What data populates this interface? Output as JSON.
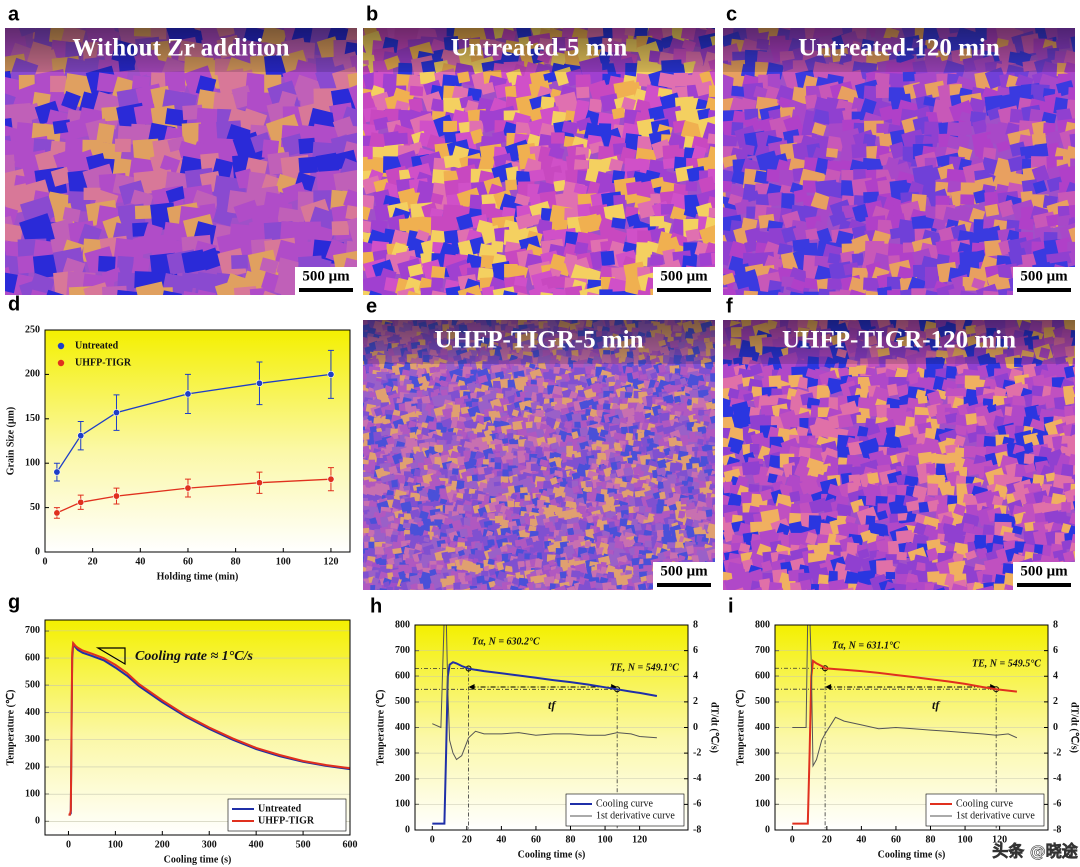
{
  "panels": [
    {
      "letter": "a",
      "title": "Without Zr addition",
      "scale_bar": "500 μm"
    },
    {
      "letter": "b",
      "title": "Untreated-5 min",
      "scale_bar": "500 μm"
    },
    {
      "letter": "c",
      "title": "Untreated-120 min",
      "scale_bar": "500 μm"
    },
    {
      "letter": "e",
      "title": "UHFP-TIGR-5 min",
      "scale_bar": "500 μm"
    },
    {
      "letter": "f",
      "title": "UHFP-TIGR-120 min",
      "scale_bar": "500 μm"
    }
  ],
  "watermark": "头条 @晓途",
  "chart_data": [
    {
      "type": "line",
      "panel_label": "d",
      "xlabel": "Holding time (min)",
      "ylabel": "Grain Size (μm)",
      "x": [
        5,
        15,
        30,
        60,
        90,
        120
      ],
      "series": [
        {
          "name": "Untreated",
          "color": "#1e3ec8",
          "values": [
            90,
            131,
            157,
            178,
            190,
            200
          ],
          "errors": [
            10,
            16,
            20,
            22,
            24,
            27
          ]
        },
        {
          "name": "UHFP-TIGR",
          "color": "#e0301e",
          "values": [
            44,
            56,
            63,
            72,
            78,
            82
          ],
          "errors": [
            6,
            8,
            9,
            10,
            12,
            13
          ]
        }
      ],
      "xlim": [
        0,
        128
      ],
      "xticks": [
        0,
        20,
        40,
        60,
        80,
        100,
        120
      ],
      "ylim": [
        0,
        250
      ],
      "yticks": [
        0,
        50,
        100,
        150,
        200,
        250
      ],
      "grid": false,
      "legend": "upper left",
      "markers": true
    },
    {
      "type": "line",
      "panel_label": "g",
      "xlabel": "Cooling time (s)",
      "ylabel": "Temperature (℃)",
      "annotations": [
        "Cooling rate ≈ 1°C/s"
      ],
      "x": [
        0,
        3,
        5,
        8,
        10,
        15,
        20,
        30,
        50,
        75,
        100,
        125,
        150,
        200,
        250,
        300,
        350,
        400,
        450,
        500,
        550,
        600
      ],
      "series": [
        {
          "name": "Untreated",
          "color": "#1f2fa8",
          "values": [
            25,
            25,
            30,
            600,
            650,
            640,
            630,
            620,
            608,
            592,
            565,
            535,
            498,
            438,
            385,
            340,
            300,
            266,
            240,
            219,
            204,
            192
          ]
        },
        {
          "name": "UHFP-TIGR",
          "color": "#e0301e",
          "values": [
            25,
            25,
            40,
            620,
            655,
            645,
            638,
            628,
            616,
            600,
            575,
            545,
            505,
            445,
            390,
            345,
            305,
            270,
            244,
            222,
            207,
            195
          ]
        }
      ],
      "xlim": [
        -50,
        600
      ],
      "xticks": [
        0,
        100,
        200,
        300,
        400,
        500,
        600
      ],
      "ylim": [
        -50,
        740
      ],
      "yticks": [
        0,
        100,
        200,
        300,
        400,
        500,
        600,
        700
      ],
      "grid": true,
      "legend": "lower right"
    },
    {
      "type": "line",
      "panel_label": "h",
      "xlabel": "Cooling time (s)",
      "ylabel": "Temperature (℃)",
      "y2label": "dT/dt (℃/s)",
      "annotations": [
        "Tα, N = 630.2°C",
        "TE, N = 549.1°C",
        "tf"
      ],
      "x": [
        0,
        5,
        7,
        8,
        9,
        10,
        12,
        14,
        17,
        21,
        25,
        30,
        40,
        50,
        60,
        70,
        80,
        90,
        100,
        107,
        115,
        120,
        130
      ],
      "series": [
        {
          "name": "Cooling curve",
          "color": "#1f2fa8",
          "values": [
            25,
            25,
            25,
            300,
            600,
            645,
            655,
            650,
            640,
            630,
            625,
            620,
            612,
            603,
            594,
            585,
            577,
            568,
            557,
            549,
            540,
            535,
            523
          ]
        },
        {
          "name": "1st derivative curve",
          "color": "#555555",
          "axis": "y2",
          "values": [
            0.3,
            0,
            9,
            9,
            3,
            -1,
            -2,
            -2.5,
            -2.2,
            -0.8,
            -0.3,
            -0.5,
            -0.5,
            -0.4,
            -0.6,
            -0.5,
            -0.5,
            -0.6,
            -0.6,
            -0.4,
            -0.5,
            -0.7,
            -0.8
          ]
        }
      ],
      "reference_lines": [
        {
          "x": 21,
          "y": 630.2
        },
        {
          "x": 107,
          "y": 549.1
        }
      ],
      "xlim": [
        -10,
        148
      ],
      "xticks": [
        0,
        20,
        40,
        60,
        80,
        100,
        120
      ],
      "ylim": [
        0,
        800
      ],
      "yticks": [
        0,
        100,
        200,
        300,
        400,
        500,
        600,
        700,
        800
      ],
      "y2lim": [
        -8,
        8
      ],
      "y2ticks": [
        -8,
        -6,
        -4,
        -2,
        0,
        2,
        4,
        6,
        8
      ],
      "grid": true,
      "legend": "lower right"
    },
    {
      "type": "line",
      "panel_label": "i",
      "xlabel": "Cooling time (s)",
      "ylabel": "Temperature (℃)",
      "y2label": "dT/dt (℃/s)",
      "annotations": [
        "Tα, N = 631.1°C",
        "TE, N = 549.5°C",
        "tf"
      ],
      "x": [
        0,
        5,
        8,
        9,
        10,
        11,
        12,
        14,
        17,
        19,
        25,
        30,
        40,
        50,
        60,
        70,
        80,
        90,
        100,
        110,
        118,
        125,
        130
      ],
      "series": [
        {
          "name": "Cooling curve",
          "color": "#e0301e",
          "values": [
            25,
            25,
            25,
            25,
            300,
            600,
            660,
            650,
            640,
            631,
            628,
            625,
            620,
            613,
            605,
            597,
            588,
            580,
            570,
            558,
            549.5,
            544,
            540
          ]
        },
        {
          "name": "1st derivative curve",
          "color": "#555555",
          "axis": "y2",
          "values": [
            0,
            0,
            0,
            9,
            9,
            5,
            -3,
            -2.5,
            -1,
            -0.5,
            0.8,
            0.5,
            0.2,
            -0.1,
            0,
            -0.1,
            -0.2,
            -0.3,
            -0.4,
            -0.5,
            -0.6,
            -0.5,
            -0.8
          ]
        }
      ],
      "reference_lines": [
        {
          "x": 19,
          "y": 631.1
        },
        {
          "x": 118,
          "y": 549.5
        }
      ],
      "xlim": [
        -10,
        148
      ],
      "xticks": [
        0,
        20,
        40,
        60,
        80,
        100,
        120
      ],
      "ylim": [
        0,
        800
      ],
      "yticks": [
        0,
        100,
        200,
        300,
        400,
        500,
        600,
        700,
        800
      ],
      "y2lim": [
        -8,
        8
      ],
      "y2ticks": [
        -8,
        -6,
        -4,
        -2,
        0,
        2,
        4,
        6,
        8
      ],
      "grid": true,
      "legend": "lower right"
    }
  ]
}
